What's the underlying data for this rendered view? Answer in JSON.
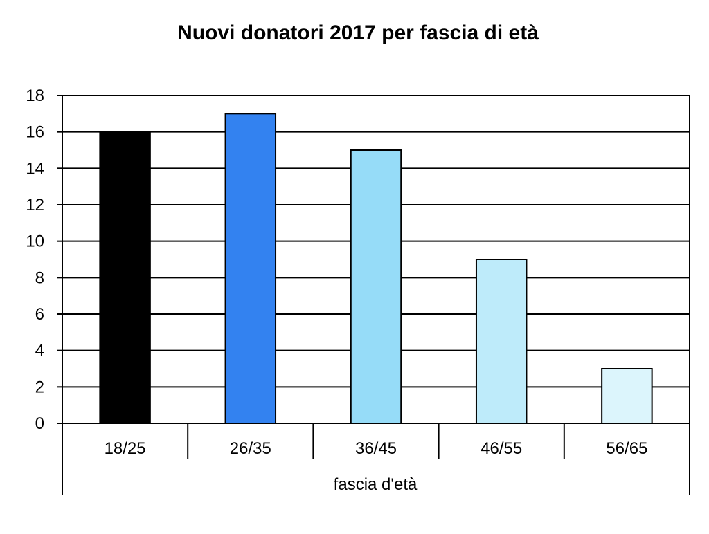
{
  "chart_data": {
    "type": "bar",
    "title": "Nuovi donatori 2017 per fascia di età",
    "xlabel": "fascia d'età",
    "ylabel": "",
    "categories": [
      "18/25",
      "26/35",
      "36/45",
      "46/55",
      "56/65"
    ],
    "values": [
      16,
      17,
      15,
      9,
      3
    ],
    "bar_colors": [
      "#000000",
      "#3382F0",
      "#96DCF8",
      "#BEEBFA",
      "#DCF5FC"
    ],
    "ylim": [
      0,
      18
    ],
    "yticks": [
      "0",
      "2",
      "4",
      "6",
      "8",
      "10",
      "12",
      "14",
      "16",
      "18"
    ],
    "grid": true,
    "legend": "none"
  }
}
